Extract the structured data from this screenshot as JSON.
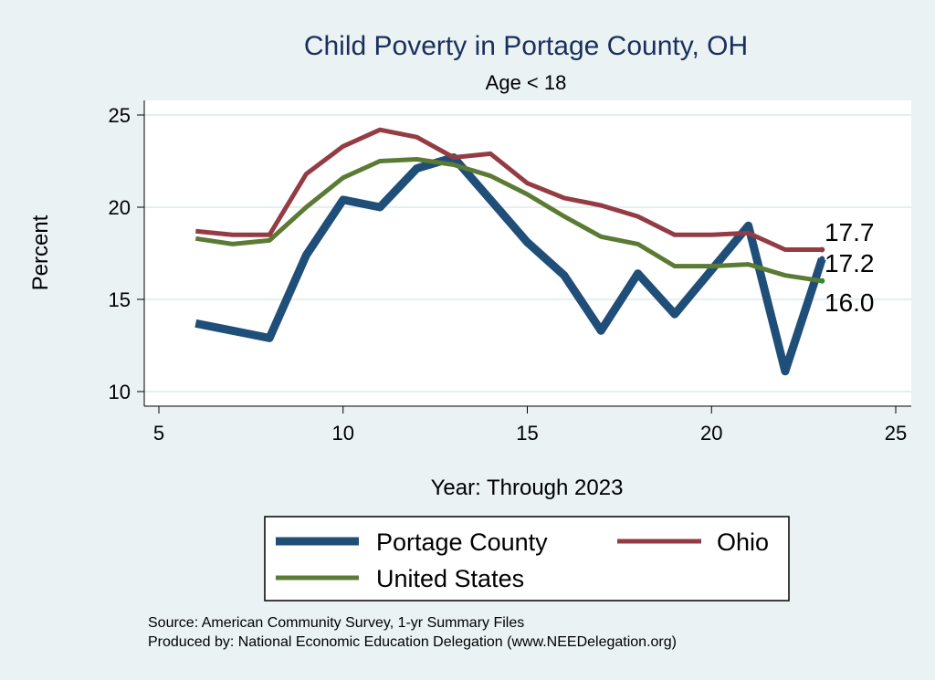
{
  "chart_data": {
    "type": "line",
    "title": "Child Poverty in Portage County, OH",
    "subtitle": "Age < 18",
    "xlabel": "Year: Through 2023",
    "ylabel": "Percent",
    "xlim": [
      5,
      25
    ],
    "ylim": [
      10,
      25
    ],
    "xticks": [
      5,
      10,
      15,
      20,
      25
    ],
    "yticks": [
      10,
      15,
      20,
      25
    ],
    "grid": true,
    "legend_position": "bottom",
    "x": [
      6,
      7,
      8,
      9,
      10,
      11,
      12,
      13,
      14,
      15,
      16,
      17,
      18,
      19,
      20,
      21,
      22,
      23
    ],
    "series": [
      {
        "name": "Portage County",
        "color": "#1f4e79",
        "values": [
          13.7,
          13.3,
          12.9,
          17.4,
          20.4,
          20.0,
          22.1,
          22.7,
          20.4,
          18.1,
          16.3,
          13.3,
          16.4,
          14.2,
          16.6,
          19.0,
          11.1,
          17.2
        ]
      },
      {
        "name": "Ohio",
        "color": "#943c43",
        "values": [
          18.7,
          18.5,
          18.5,
          21.8,
          23.3,
          24.2,
          23.8,
          22.7,
          22.9,
          21.3,
          20.5,
          20.1,
          19.5,
          18.5,
          18.5,
          18.6,
          17.7,
          17.7
        ]
      },
      {
        "name": "United States",
        "color": "#5b7a34",
        "values": [
          18.3,
          18.0,
          18.2,
          20.0,
          21.6,
          22.5,
          22.6,
          22.3,
          21.7,
          20.7,
          19.5,
          18.4,
          18.0,
          16.8,
          16.8,
          16.9,
          16.3,
          16.0
        ]
      }
    ],
    "end_labels": [
      "17.7",
      "17.2",
      "16.0"
    ],
    "source_lines": [
      "Source: American Community Survey, 1-yr Summary Files",
      "Produced by: National Economic Education Delegation (www.NEEDelegation.org)"
    ]
  }
}
